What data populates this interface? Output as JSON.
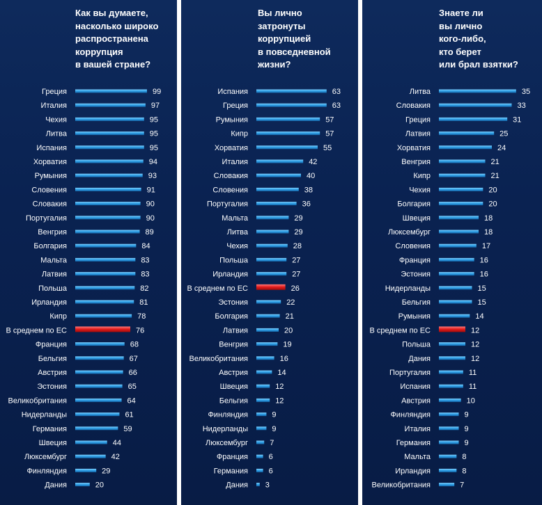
{
  "colors": {
    "panel_bg": "#0a2251",
    "bar": "#2e9fe6",
    "bar_highlight": "#e11a1a",
    "text": "#ffffff"
  },
  "chart_data": [
    {
      "type": "bar",
      "orientation": "horizontal",
      "title": "Как вы думаете,\nнасколько широко\nраспространена\nкоррупция\nв вашей стране?",
      "highlight": "В среднем по ЕС",
      "categories": [
        "Греция",
        "Италия",
        "Чехия",
        "Литва",
        "Испания",
        "Хорватия",
        "Румыния",
        "Словения",
        "Словакия",
        "Португалия",
        "Венгрия",
        "Болгария",
        "Мальта",
        "Латвия",
        "Польша",
        "Ирландия",
        "Кипр",
        "В среднем по ЕС",
        "Франция",
        "Бельгия",
        "Австрия",
        "Эстония",
        "Великобритания",
        "Нидерланды",
        "Германия",
        "Швеция",
        "Люксембург",
        "Финляндия",
        "Дания"
      ],
      "values": [
        99,
        97,
        95,
        95,
        95,
        94,
        93,
        91,
        90,
        90,
        89,
        84,
        83,
        83,
        82,
        81,
        78,
        76,
        68,
        67,
        66,
        65,
        64,
        61,
        59,
        44,
        42,
        29,
        20
      ],
      "xlim": [
        0,
        100
      ]
    },
    {
      "type": "bar",
      "orientation": "horizontal",
      "title": "Вы лично\nзатронуты\nкоррупцией\nв повседневной\nжизни?",
      "highlight": "В среднем по ЕС",
      "categories": [
        "Испания",
        "Греция",
        "Румыния",
        "Кипр",
        "Хорватия",
        "Италия",
        "Словакия",
        "Словения",
        "Португалия",
        "Мальта",
        "Литва",
        "Чехия",
        "Польша",
        "Ирландия",
        "В среднем по ЕС",
        "Эстония",
        "Болгария",
        "Латвия",
        "Венгрия",
        "Великобритания",
        "Австрия",
        "Швеция",
        "Бельгия",
        "Финляндия",
        "Нидерланды",
        "Люксембург",
        "Франция",
        "Германия",
        "Дания"
      ],
      "values": [
        63,
        63,
        57,
        57,
        55,
        42,
        40,
        38,
        36,
        29,
        29,
        28,
        27,
        27,
        26,
        22,
        21,
        20,
        19,
        16,
        14,
        12,
        12,
        9,
        9,
        7,
        6,
        6,
        3
      ],
      "xlim": [
        0,
        65
      ]
    },
    {
      "type": "bar",
      "orientation": "horizontal",
      "title": "Знаете ли\nвы лично\nкого-либо,\nкто берет\nили брал взятки?",
      "highlight": "В среднем по ЕС",
      "categories": [
        "Литва",
        "Словакия",
        "Греция",
        "Латвия",
        "Хорватия",
        "Венгрия",
        "Кипр",
        "Чехия",
        "Болгария",
        "Швеция",
        "Люксембург",
        "Словения",
        "Франция",
        "Эстония",
        "Нидерланды",
        "Бельгия",
        "Румыния",
        "В среднем по ЕС",
        "Польша",
        "Дания",
        "Португалия",
        "Испания",
        "Австрия",
        "Финляндия",
        "Италия",
        "Германия",
        "Мальта",
        "Ирландия",
        "Великобритания"
      ],
      "values": [
        35,
        33,
        31,
        25,
        24,
        21,
        21,
        20,
        20,
        18,
        18,
        17,
        16,
        16,
        15,
        15,
        14,
        12,
        12,
        12,
        11,
        11,
        10,
        9,
        9,
        9,
        8,
        8,
        7
      ],
      "xlim": [
        0,
        36
      ]
    }
  ]
}
